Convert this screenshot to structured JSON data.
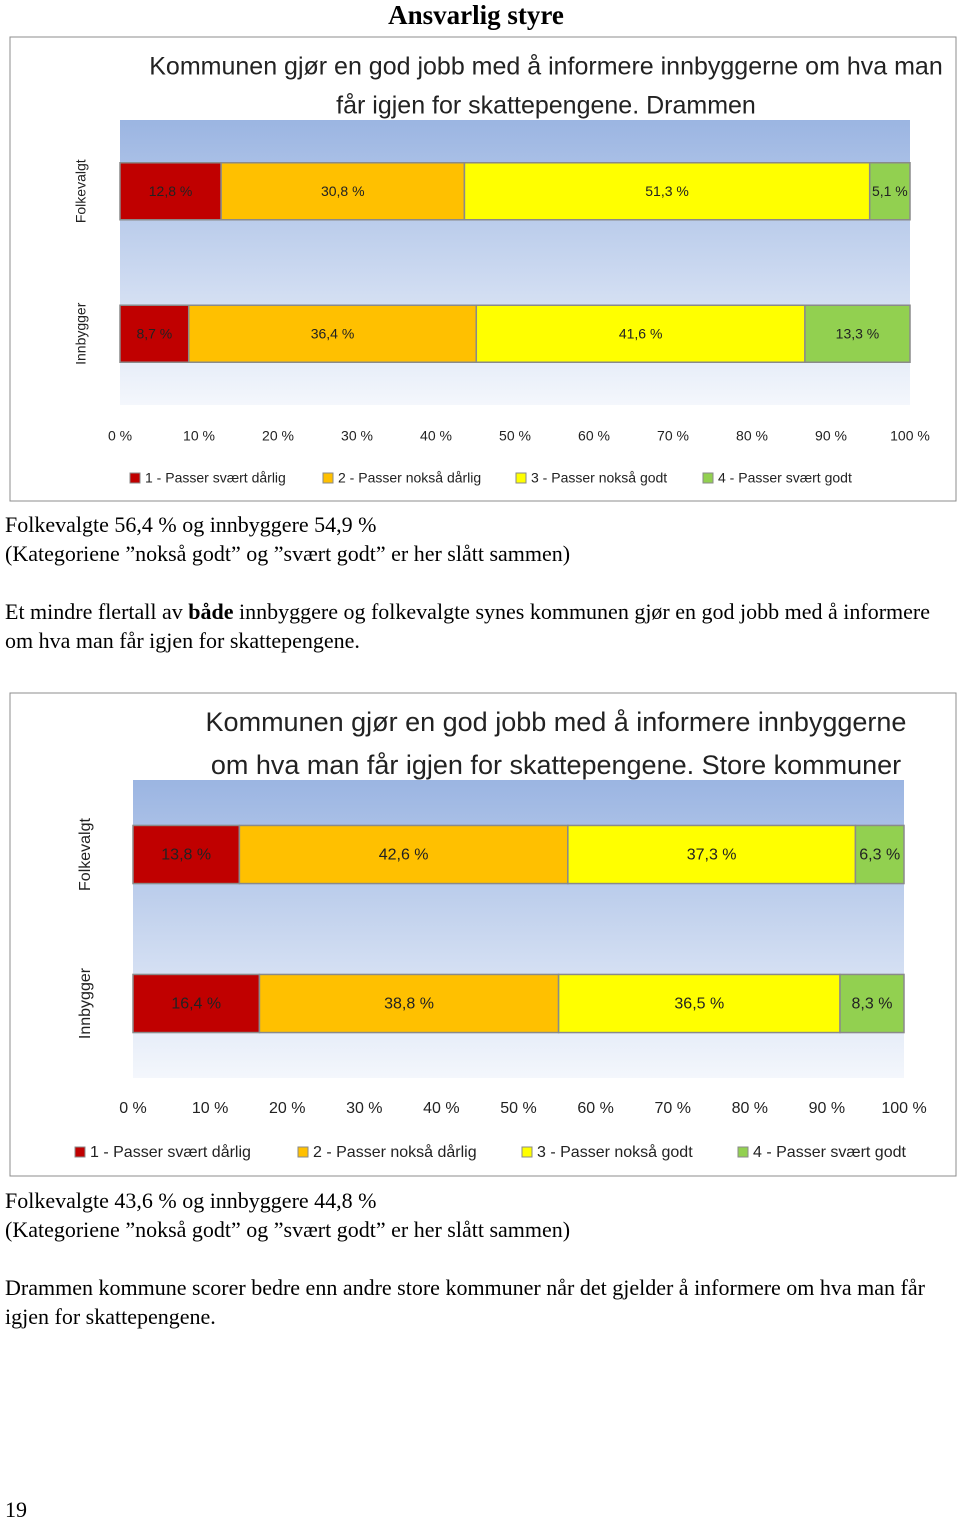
{
  "heading": "Ansvarlig styre",
  "chart_data": [
    {
      "type": "bar",
      "orientation": "horizontal",
      "stacked": true,
      "legend_position": "bottom",
      "title": [
        "Kommunen gjør en god jobb med å informere innbyggerne om hva man",
        "får igjen for skattepengene. Drammen"
      ],
      "categories": [
        "Folkevalgt",
        "Innbygger"
      ],
      "series": [
        {
          "name": "1 - Passer svært dårlig",
          "color": "#c00000",
          "values": [
            12.8,
            8.7
          ],
          "value_labels": [
            "12,8 %",
            "8,7 %"
          ]
        },
        {
          "name": "2 - Passer nokså dårlig",
          "color": "#ffc000",
          "values": [
            30.8,
            36.4
          ],
          "value_labels": [
            "30,8 %",
            "36,4 %"
          ]
        },
        {
          "name": "3 - Passer nokså godt",
          "color": "#ffff00",
          "values": [
            51.3,
            41.6
          ],
          "value_labels": [
            "51,3 %",
            "41,6 %"
          ]
        },
        {
          "name": "4 - Passer svært godt",
          "color": "#92d050",
          "values": [
            5.1,
            13.3
          ],
          "value_labels": [
            "5,1 %",
            "13,3 %"
          ]
        }
      ],
      "xlim": [
        0,
        100
      ],
      "xticks": [
        {
          "value": 0,
          "label": "0 %"
        },
        {
          "value": 10,
          "label": "10 %"
        },
        {
          "value": 20,
          "label": "20 %"
        },
        {
          "value": 30,
          "label": "30 %"
        },
        {
          "value": 40,
          "label": "40 %"
        },
        {
          "value": 50,
          "label": "50 %"
        },
        {
          "value": 60,
          "label": "60 %"
        },
        {
          "value": 70,
          "label": "70 %"
        },
        {
          "value": 80,
          "label": "80 %"
        },
        {
          "value": 90,
          "label": "90 %"
        },
        {
          "value": 100,
          "label": "100 %"
        }
      ]
    },
    {
      "type": "bar",
      "orientation": "horizontal",
      "stacked": true,
      "legend_position": "bottom",
      "title": [
        "Kommunen gjør en god jobb med å informere innbyggerne",
        "om hva man får igjen for skattepengene. Store kommuner"
      ],
      "categories": [
        "Folkevalgt",
        "Innbygger"
      ],
      "series": [
        {
          "name": "1 - Passer svært dårlig",
          "color": "#c00000",
          "values": [
            13.8,
            16.4
          ],
          "value_labels": [
            "13,8 %",
            "16,4 %"
          ]
        },
        {
          "name": "2 - Passer nokså dårlig",
          "color": "#ffc000",
          "values": [
            42.6,
            38.8
          ],
          "value_labels": [
            "42,6 %",
            "38,8 %"
          ]
        },
        {
          "name": "3 - Passer nokså godt",
          "color": "#ffff00",
          "values": [
            37.3,
            36.5
          ],
          "value_labels": [
            "37,3 %",
            "36,5 %"
          ]
        },
        {
          "name": "4 - Passer svært godt",
          "color": "#92d050",
          "values": [
            6.3,
            8.3
          ],
          "value_labels": [
            "6,3 %",
            "8,3 %"
          ]
        }
      ],
      "xlim": [
        0,
        100
      ],
      "xticks": [
        {
          "value": 0,
          "label": "0 %"
        },
        {
          "value": 10,
          "label": "10 %"
        },
        {
          "value": 20,
          "label": "20 %"
        },
        {
          "value": 30,
          "label": "30 %"
        },
        {
          "value": 40,
          "label": "40 %"
        },
        {
          "value": 50,
          "label": "50 %"
        },
        {
          "value": 60,
          "label": "60 %"
        },
        {
          "value": 70,
          "label": "70 %"
        },
        {
          "value": 80,
          "label": "80 %"
        },
        {
          "value": 90,
          "label": "90 %"
        },
        {
          "value": 100,
          "label": "100 %"
        }
      ]
    }
  ],
  "text_1": {
    "summary": "Folkevalgte 56,4 % og innbyggere 54,9 %",
    "note": "(Kategoriene ”nokså godt” og ”svært godt” er her slått sammen)",
    "body": [
      "Et mindre flertall av ",
      "både",
      " innbyggere og folkevalgte synes kommunen gjør en god jobb med å informere om hva man får igjen for skattepengene."
    ]
  },
  "text_2": {
    "summary": "Folkevalgte 43,6 % og innbyggere 44,8 %",
    "note": "(Kategoriene ”nokså godt” og ”svært godt” er her slått sammen)",
    "body": "Drammen kommune scorer bedre enn andre store kommuner når det gjelder å informere om hva man får igjen for skattepengene."
  },
  "page_number": "19"
}
